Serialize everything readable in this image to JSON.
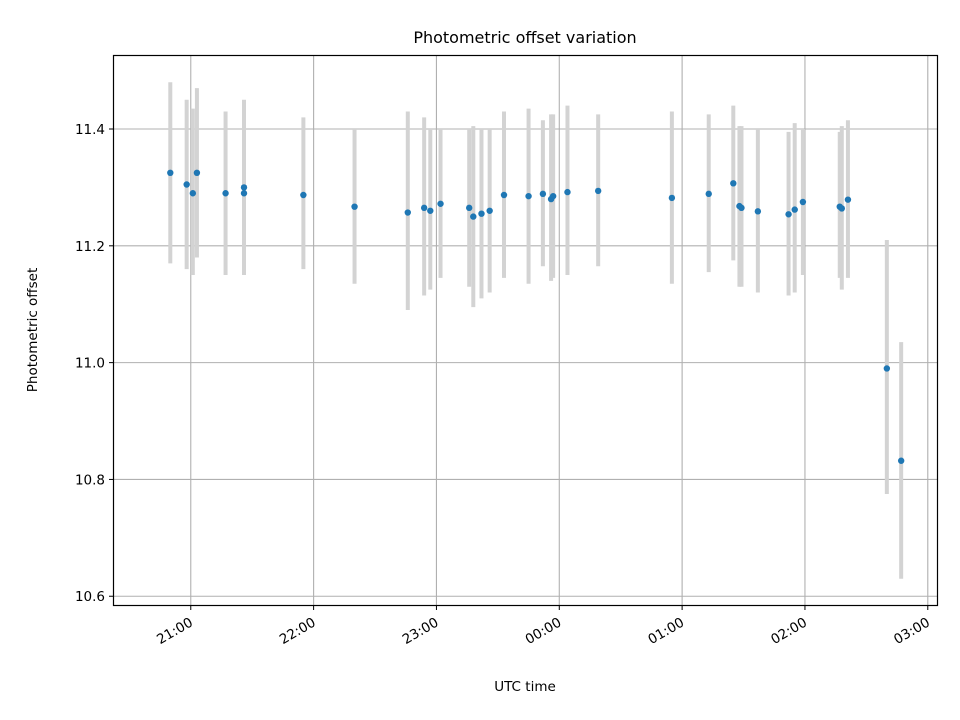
{
  "chart_data": {
    "type": "scatter",
    "title": "Photometric offset variation",
    "xlabel": "UTC time",
    "ylabel": "Photometric offset",
    "ylim": [
      10.585,
      11.525
    ],
    "xlim_hours": [
      20.375,
      27.075
    ],
    "grid": true,
    "legend": "none",
    "x_tick_labels": [
      "21:00",
      "22:00",
      "23:00",
      "00:00",
      "01:00",
      "02:00",
      "03:00"
    ],
    "x_tick_hours": [
      21,
      22,
      23,
      24,
      25,
      26,
      27
    ],
    "y_tick_labels": [
      "10.6",
      "10.8",
      "11.0",
      "11.2",
      "11.4"
    ],
    "y_ticks": [
      10.6,
      10.8,
      11.0,
      11.2,
      11.4
    ],
    "colors": {
      "marker": "#1f77b4",
      "errorbar": "#d3d3d3",
      "grid": "#b0b0b0"
    },
    "points": [
      {
        "time": "20:50",
        "y": 11.325,
        "lo": 11.17,
        "hi": 11.48
      },
      {
        "time": "20:58",
        "y": 11.305,
        "lo": 11.16,
        "hi": 11.45
      },
      {
        "time": "21:01",
        "y": 11.29,
        "lo": 11.15,
        "hi": 11.435
      },
      {
        "time": "21:03",
        "y": 11.325,
        "lo": 11.18,
        "hi": 11.47
      },
      {
        "time": "21:17",
        "y": 11.29,
        "lo": 11.15,
        "hi": 11.43
      },
      {
        "time": "21:26",
        "y": 11.29,
        "lo": 11.15,
        "hi": 11.44
      },
      {
        "time": "21:26",
        "y": 11.3,
        "lo": 11.15,
        "hi": 11.45
      },
      {
        "time": "21:55",
        "y": 11.287,
        "lo": 11.16,
        "hi": 11.42
      },
      {
        "time": "22:20",
        "y": 11.267,
        "lo": 11.135,
        "hi": 11.4
      },
      {
        "time": "22:46",
        "y": 11.257,
        "lo": 11.09,
        "hi": 11.43
      },
      {
        "time": "22:54",
        "y": 11.265,
        "lo": 11.115,
        "hi": 11.42
      },
      {
        "time": "22:57",
        "y": 11.26,
        "lo": 11.125,
        "hi": 11.4
      },
      {
        "time": "23:02",
        "y": 11.272,
        "lo": 11.145,
        "hi": 11.4
      },
      {
        "time": "23:16",
        "y": 11.265,
        "lo": 11.13,
        "hi": 11.4
      },
      {
        "time": "23:18",
        "y": 11.25,
        "lo": 11.095,
        "hi": 11.405
      },
      {
        "time": "23:22",
        "y": 11.255,
        "lo": 11.11,
        "hi": 11.4
      },
      {
        "time": "23:26",
        "y": 11.26,
        "lo": 11.12,
        "hi": 11.4
      },
      {
        "time": "23:33",
        "y": 11.287,
        "lo": 11.145,
        "hi": 11.43
      },
      {
        "time": "23:45",
        "y": 11.285,
        "lo": 11.135,
        "hi": 11.435
      },
      {
        "time": "23:52",
        "y": 11.289,
        "lo": 11.165,
        "hi": 11.415
      },
      {
        "time": "23:56",
        "y": 11.28,
        "lo": 11.14,
        "hi": 11.425
      },
      {
        "time": "23:57",
        "y": 11.285,
        "lo": 11.145,
        "hi": 11.425
      },
      {
        "time": "00:04",
        "y": 11.292,
        "lo": 11.15,
        "hi": 11.44
      },
      {
        "time": "00:19",
        "y": 11.294,
        "lo": 11.165,
        "hi": 11.425
      },
      {
        "time": "00:55",
        "y": 11.282,
        "lo": 11.135,
        "hi": 11.43
      },
      {
        "time": "01:13",
        "y": 11.289,
        "lo": 11.155,
        "hi": 11.425
      },
      {
        "time": "01:25",
        "y": 11.307,
        "lo": 11.175,
        "hi": 11.44
      },
      {
        "time": "01:28",
        "y": 11.268,
        "lo": 11.13,
        "hi": 11.405
      },
      {
        "time": "01:29",
        "y": 11.265,
        "lo": 11.13,
        "hi": 11.405
      },
      {
        "time": "01:37",
        "y": 11.259,
        "lo": 11.12,
        "hi": 11.4
      },
      {
        "time": "01:52",
        "y": 11.254,
        "lo": 11.115,
        "hi": 11.395
      },
      {
        "time": "01:55",
        "y": 11.262,
        "lo": 11.12,
        "hi": 11.41
      },
      {
        "time": "01:59",
        "y": 11.275,
        "lo": 11.15,
        "hi": 11.4
      },
      {
        "time": "02:17",
        "y": 11.267,
        "lo": 11.145,
        "hi": 11.395
      },
      {
        "time": "02:18",
        "y": 11.264,
        "lo": 11.125,
        "hi": 11.405
      },
      {
        "time": "02:21",
        "y": 11.279,
        "lo": 11.145,
        "hi": 11.415
      },
      {
        "time": "02:40",
        "y": 10.99,
        "lo": 10.775,
        "hi": 11.21
      },
      {
        "time": "02:47",
        "y": 10.832,
        "lo": 10.63,
        "hi": 11.035
      }
    ]
  }
}
